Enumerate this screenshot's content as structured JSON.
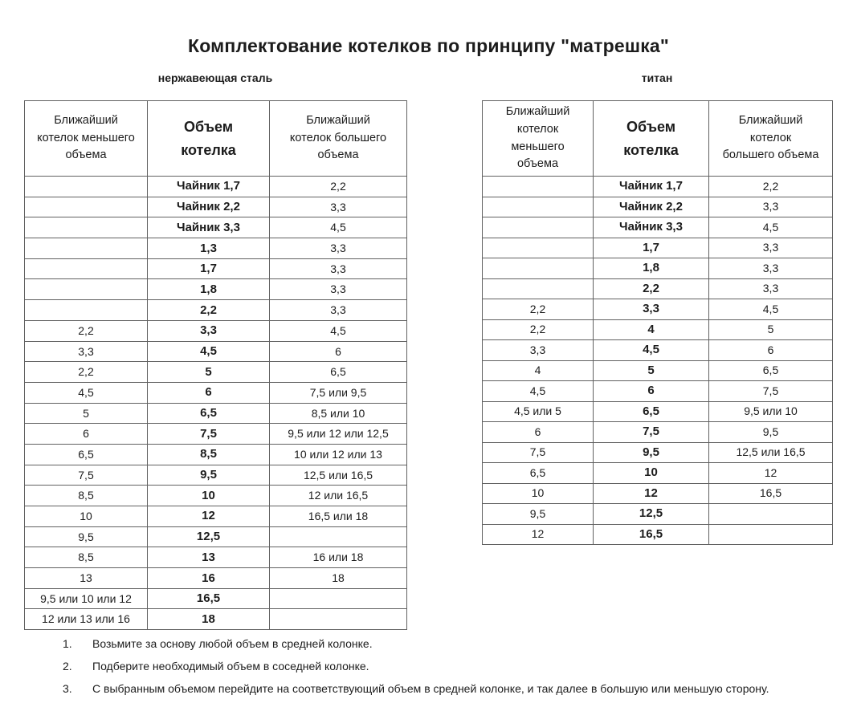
{
  "title": "Комплектование котелков по принципу \"матрешка\"",
  "tables": [
    {
      "label": "нержавеющая сталь",
      "headers": [
        "Ближайший\nкотелок меньшего\nобъема",
        "Объем\nкотелка",
        "Ближайший\nкотелок  большего\nобъема"
      ],
      "rows": [
        [
          "",
          "Чайник 1,7",
          "2,2"
        ],
        [
          "",
          "Чайник 2,2",
          "3,3"
        ],
        [
          "",
          "Чайник 3,3",
          "4,5"
        ],
        [
          "",
          "1,3",
          "3,3"
        ],
        [
          "",
          "1,7",
          "3,3"
        ],
        [
          "",
          "1,8",
          "3,3"
        ],
        [
          "",
          "2,2",
          "3,3"
        ],
        [
          "2,2",
          "3,3",
          "4,5"
        ],
        [
          "3,3",
          "4,5",
          "6"
        ],
        [
          "2,2",
          "5",
          "6,5"
        ],
        [
          "4,5",
          "6",
          "7,5 или 9,5"
        ],
        [
          "5",
          "6,5",
          "8,5 или 10"
        ],
        [
          "6",
          "7,5",
          "9,5 или 12 или 12,5"
        ],
        [
          "6,5",
          "8,5",
          "10 или 12 или 13"
        ],
        [
          "7,5",
          "9,5",
          "12,5 или 16,5"
        ],
        [
          "8,5",
          "10",
          "12 или 16,5"
        ],
        [
          "10",
          "12",
          "16,5 или 18"
        ],
        [
          "9,5",
          "12,5",
          ""
        ],
        [
          "8,5",
          "13",
          "16 или 18"
        ],
        [
          "13",
          "16",
          "18"
        ],
        [
          "9,5 или 10 или 12",
          "16,5",
          ""
        ],
        [
          "12 или 13 или 16",
          "18",
          ""
        ]
      ]
    },
    {
      "label": "титан",
      "headers": [
        "Ближайший\nкотелок\nменьшего\nобъема",
        "Объем\nкотелка",
        "Ближайший\nкотелок\nбольшего объема"
      ],
      "rows": [
        [
          "",
          "Чайник 1,7",
          "2,2"
        ],
        [
          "",
          "Чайник 2,2",
          "3,3"
        ],
        [
          "",
          "Чайник 3,3",
          "4,5"
        ],
        [
          "",
          "1,7",
          "3,3"
        ],
        [
          "",
          "1,8",
          "3,3"
        ],
        [
          "",
          "2,2",
          "3,3"
        ],
        [
          "2,2",
          "3,3",
          "4,5"
        ],
        [
          "2,2",
          "4",
          "5"
        ],
        [
          "3,3",
          "4,5",
          "6"
        ],
        [
          "4",
          "5",
          "6,5"
        ],
        [
          "4,5",
          "6",
          "7,5"
        ],
        [
          "4,5 или 5",
          "6,5",
          "9,5 или 10"
        ],
        [
          "6",
          "7,5",
          "9,5"
        ],
        [
          "7,5",
          "9,5",
          "12,5 или 16,5"
        ],
        [
          "6,5",
          "10",
          "12"
        ],
        [
          "10",
          "12",
          "16,5"
        ],
        [
          "9,5",
          "12,5",
          ""
        ],
        [
          "12",
          "16,5",
          ""
        ]
      ]
    }
  ],
  "notes": [
    {
      "num": "1.",
      "text": "Возьмите за основу любой объем в средней колонке."
    },
    {
      "num": "2.",
      "text": "Подберите необходимый объем в соседней колонке."
    },
    {
      "num": "3.",
      "text": "С выбранным объемом перейдите на соответствующий объем в средней колонке, и так далее в большую или меньшую сторону."
    }
  ],
  "colors": {
    "text": "#1c1c1c",
    "border": "#616161",
    "background": "#ffffff"
  }
}
